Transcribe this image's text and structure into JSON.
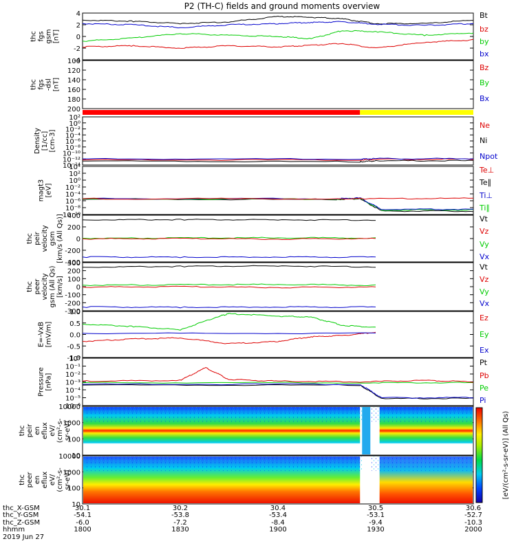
{
  "title": "P2 (TH-C) fields and ground moments overview",
  "footer": {
    "row_labels": [
      "thc_X-GSM",
      "thc_Y-GSM",
      "thc_Z-GSM",
      "hhmm",
      "2019 Jun 27"
    ],
    "ticks": [
      {
        "x": "30.1",
        "y": "-54.1",
        "z": "-6.0",
        "hhmm": "1800"
      },
      {
        "x": "30.2",
        "y": "-53.8",
        "z": "-7.2",
        "hhmm": "1830"
      },
      {
        "x": "30.4",
        "y": "-53.4",
        "z": "-8.4",
        "hhmm": "1900"
      },
      {
        "x": "30.5",
        "y": "-53.1",
        "z": "-9.4",
        "hhmm": "1930"
      },
      {
        "x": "30.6",
        "y": "-52.7",
        "z": "-10.3",
        "hhmm": "2000"
      }
    ]
  },
  "colors": {
    "black": "#000000",
    "red": "#dd0000",
    "green": "#00cc00",
    "blue": "#0000cc",
    "bar_red": "#ff0000",
    "bar_yellow": "#ffff00"
  },
  "chart_data": [
    {
      "type": "line",
      "ylabel_lines": [
        "thc",
        "fgs",
        "gsm",
        "[nT]"
      ],
      "yticks": [
        "4",
        "2",
        "0",
        "-2",
        "-4"
      ],
      "ylim": [
        -4,
        4
      ],
      "legend": [
        {
          "label": "Bt",
          "color": "#000000"
        },
        {
          "label": "bz",
          "color": "#dd0000"
        },
        {
          "label": "by",
          "color": "#00cc00"
        },
        {
          "label": "bx",
          "color": "#0000cc"
        }
      ],
      "series": [
        {
          "color": "#000000",
          "x": [
            18.0,
            18.25,
            18.5,
            18.75,
            19.0,
            19.17,
            19.33,
            19.5,
            19.75,
            20.0
          ],
          "y": [
            2.8,
            2.6,
            2.2,
            2.5,
            3.4,
            3.3,
            3.0,
            2.2,
            2.2,
            2.8
          ]
        },
        {
          "color": "#0000cc",
          "x": [
            18.0,
            18.25,
            18.5,
            18.75,
            19.0,
            19.17,
            19.33,
            19.5,
            19.75,
            20.0
          ],
          "y": [
            2.2,
            2.0,
            1.5,
            2.0,
            2.2,
            2.4,
            2.5,
            2.1,
            1.9,
            2.2
          ]
        },
        {
          "color": "#00cc00",
          "x": [
            18.0,
            18.25,
            18.5,
            18.75,
            19.0,
            19.17,
            19.33,
            19.5,
            19.75,
            20.0
          ],
          "y": [
            -0.8,
            -0.3,
            0.5,
            0.2,
            0.0,
            -0.4,
            1.0,
            0.8,
            0.2,
            0.6
          ]
        },
        {
          "color": "#dd0000",
          "x": [
            18.0,
            18.25,
            18.5,
            18.75,
            19.0,
            19.17,
            19.33,
            19.5,
            19.75,
            20.0
          ],
          "y": [
            -1.8,
            -1.6,
            -2.0,
            -1.6,
            -1.8,
            -1.5,
            -1.2,
            -2.0,
            -1.0,
            -0.6
          ]
        }
      ]
    },
    {
      "type": "line",
      "ylabel_lines": [
        "thc",
        "fgs",
        "-dsl",
        "[nT]"
      ],
      "yticks": [
        "100",
        "120",
        "140",
        "160",
        "180",
        "200"
      ],
      "ylim": [
        100,
        200
      ],
      "legend": [
        {
          "label": "Bz",
          "color": "#dd0000"
        },
        {
          "label": "By",
          "color": "#00cc00"
        },
        {
          "label": "Bx",
          "color": "#0000cc"
        }
      ],
      "series": []
    },
    {
      "type": "bar",
      "segments": [
        {
          "from": 18.0,
          "to": 19.42,
          "color": "#ff0000"
        },
        {
          "from": 19.42,
          "to": 20.0,
          "color": "#ffff00"
        }
      ]
    },
    {
      "type": "line",
      "ylabel_lines": [
        "Density",
        "[1/cc]",
        "[cm-3]"
      ],
      "yticks": [
        "10²",
        "10⁰",
        "10⁻²",
        "10⁻⁴",
        "10⁻⁶",
        "10⁻⁸",
        "10⁻¹⁰",
        "10⁻¹²",
        "10⁻¹⁴"
      ],
      "ylim": [
        2,
        -14
      ],
      "legend": [
        {
          "label": "Ne",
          "color": "#dd0000"
        },
        {
          "label": "Ni",
          "color": "#000000"
        },
        {
          "label": "Npot",
          "color": "#0000cc"
        }
      ],
      "series": [
        {
          "color": "#000000",
          "x": [
            18.0,
            19.42,
            19.5,
            20.0
          ],
          "y": [
            0.7,
            0.9,
            0.6,
            0.6
          ]
        },
        {
          "color": "#dd0000",
          "x": [
            18.0,
            19.42,
            19.5,
            20.0
          ],
          "y": [
            0.3,
            0.3,
            0.1,
            0.1
          ]
        },
        {
          "color": "#0000cc",
          "x": [
            18.0,
            19.42,
            19.5,
            20.0
          ],
          "y": [
            0.0,
            0.0,
            -0.1,
            -0.1
          ]
        }
      ]
    },
    {
      "type": "line",
      "ylabel_lines": [
        "magt3",
        "[eV]"
      ],
      "yticks": [
        "10⁴",
        "10²",
        "10⁰",
        "10⁻²",
        "10⁻⁴",
        "10⁻⁶",
        "10⁻⁸",
        "10⁻¹⁰"
      ],
      "ylim": [
        4,
        -10
      ],
      "legend": [
        {
          "label": "Te⊥",
          "color": "#dd0000"
        },
        {
          "label": "Te∥",
          "color": "#000000"
        },
        {
          "label": "Ti⊥",
          "color": "#0000cc"
        },
        {
          "label": "Ti∥",
          "color": "#00cc00"
        }
      ],
      "series": [
        {
          "color": "#000000",
          "x": [
            18.0,
            19.3,
            19.42,
            19.53,
            20.0
          ],
          "y": [
            -0.4,
            -0.4,
            -0.6,
            3.0,
            3.0
          ]
        },
        {
          "color": "#00cc00",
          "x": [
            18.0,
            19.3,
            19.42,
            19.53,
            20.0
          ],
          "y": [
            -0.5,
            -0.5,
            -0.7,
            2.7,
            2.7
          ]
        },
        {
          "color": "#0000cc",
          "x": [
            18.0,
            19.3,
            19.42,
            19.53,
            20.0
          ],
          "y": [
            -0.6,
            -0.6,
            -0.8,
            2.5,
            2.5
          ]
        },
        {
          "color": "#dd0000",
          "x": [
            18.0,
            19.42,
            20.0
          ],
          "y": [
            -0.6,
            -0.6,
            -0.7
          ]
        }
      ]
    },
    {
      "type": "line",
      "ylabel_lines": [
        "thc",
        "peir",
        "velocity",
        "gsm",
        "[km/s (All Qs)]"
      ],
      "yticks": [
        "400",
        "200",
        "0",
        "-200",
        "-400"
      ],
      "ylim": [
        -450,
        450
      ],
      "legend": [
        {
          "label": "Vt",
          "color": "#000000"
        },
        {
          "label": "Vz",
          "color": "#dd0000"
        },
        {
          "label": "Vy",
          "color": "#00cc00"
        },
        {
          "label": "Vx",
          "color": "#0000cc"
        }
      ],
      "series": [
        {
          "color": "#000000",
          "x": [
            18.0,
            18.5,
            19.0,
            19.5
          ],
          "y": [
            360,
            365,
            360,
            358
          ]
        },
        {
          "color": "#00cc00",
          "x": [
            18.0,
            18.5,
            19.0,
            19.5
          ],
          "y": [
            5,
            10,
            15,
            10
          ]
        },
        {
          "color": "#dd0000",
          "x": [
            18.0,
            18.5,
            19.0,
            19.5
          ],
          "y": [
            -5,
            0,
            -10,
            0
          ]
        },
        {
          "color": "#0000cc",
          "x": [
            18.0,
            18.5,
            19.0,
            19.5
          ],
          "y": [
            -355,
            -360,
            -355,
            -358
          ]
        }
      ]
    },
    {
      "type": "line",
      "ylabel_lines": [
        "thc",
        "peer",
        "velocity",
        "gsm (All Qs)",
        "[km/s]"
      ],
      "yticks": [
        "300",
        "200",
        "100",
        "0",
        "-100",
        "-200",
        "-300"
      ],
      "ylim": [
        -320,
        320
      ],
      "legend": [
        {
          "label": "Vt",
          "color": "#000000"
        },
        {
          "label": "Vz",
          "color": "#dd0000"
        },
        {
          "label": "Vy",
          "color": "#00cc00"
        },
        {
          "label": "Vx",
          "color": "#0000cc"
        }
      ],
      "series": [
        {
          "color": "#000000",
          "x": [
            18.0,
            18.5,
            19.0,
            19.5
          ],
          "y": [
            260,
            270,
            275,
            265
          ]
        },
        {
          "color": "#00cc00",
          "x": [
            18.0,
            18.5,
            19.0,
            19.5
          ],
          "y": [
            20,
            25,
            30,
            20
          ]
        },
        {
          "color": "#dd0000",
          "x": [
            18.0,
            18.5,
            19.0,
            19.5
          ],
          "y": [
            -5,
            0,
            -10,
            -5
          ]
        },
        {
          "color": "#0000cc",
          "x": [
            18.0,
            18.5,
            19.0,
            19.5
          ],
          "y": [
            -270,
            -275,
            -270,
            -272
          ]
        }
      ]
    },
    {
      "type": "line",
      "ylabel_lines": [
        "E=-VxB",
        "[mV/m]"
      ],
      "yticks": [
        "1.0",
        "0.5",
        "0.0",
        "-0.5",
        "-1.0"
      ],
      "ylim": [
        -1.0,
        1.0
      ],
      "legend": [
        {
          "label": "Ez",
          "color": "#dd0000"
        },
        {
          "label": "Ey",
          "color": "#00cc00"
        },
        {
          "label": "Ex",
          "color": "#0000cc"
        }
      ],
      "series": [
        {
          "color": "#00cc00",
          "x": [
            18.0,
            18.25,
            18.5,
            18.7,
            18.75,
            19.0,
            19.17,
            19.33,
            19.5
          ],
          "y": [
            0.45,
            0.35,
            0.2,
            0.8,
            0.9,
            0.8,
            0.75,
            0.4,
            0.3
          ]
        },
        {
          "color": "#dd0000",
          "x": [
            18.0,
            18.25,
            18.5,
            18.75,
            19.0,
            19.17,
            19.33,
            19.5
          ],
          "y": [
            -0.3,
            -0.2,
            -0.15,
            -0.4,
            -0.3,
            -0.1,
            -0.05,
            0.1
          ]
        },
        {
          "color": "#0000cc",
          "x": [
            18.0,
            19.5
          ],
          "y": [
            0.05,
            0.05
          ]
        }
      ]
    },
    {
      "type": "line",
      "ylabel_lines": [
        "Pressure",
        "[nPa]"
      ],
      "yticks": [
        "10⁰",
        "10⁻¹",
        "10⁻²",
        "10⁻³",
        "10⁻⁴",
        "10⁻⁵",
        "10⁻⁶"
      ],
      "ylim": [
        0,
        -6
      ],
      "legend": [
        {
          "label": "Pt",
          "color": "#000000"
        },
        {
          "label": "Pb",
          "color": "#dd0000"
        },
        {
          "label": "Pe",
          "color": "#00cc00"
        },
        {
          "label": "Pi",
          "color": "#0000cc"
        }
      ],
      "series": [
        {
          "color": "#000000",
          "x": [
            18.0,
            19.42,
            19.53,
            20.0
          ],
          "y": [
            -2.6,
            -2.6,
            -0.9,
            -0.9
          ]
        },
        {
          "color": "#0000cc",
          "x": [
            18.0,
            19.42,
            19.53,
            20.0
          ],
          "y": [
            -2.7,
            -2.7,
            -1.0,
            -1.0
          ]
        },
        {
          "color": "#00cc00",
          "x": [
            18.0,
            19.42,
            20.0
          ],
          "y": [
            -2.9,
            -2.9,
            -2.9
          ]
        },
        {
          "color": "#dd0000",
          "x": [
            18.0,
            18.5,
            18.63,
            18.75,
            19.0,
            19.42,
            19.75,
            20.0
          ],
          "y": [
            -3.1,
            -3.2,
            -4.8,
            -3.3,
            -3.1,
            -3.0,
            -3.2,
            -3.0
          ]
        }
      ]
    },
    {
      "type": "heatmap",
      "ylabel_lines": [
        "thc",
        "peir",
        "en",
        "eflux",
        "eV/",
        "(cm²-s-",
        "sr-eV)"
      ],
      "yticks": [
        "10000",
        "1000",
        "100",
        "10"
      ],
      "ylim": [
        5,
        20000
      ],
      "colorbar_label": "[eV/(cm²-s-sr-eV)] (All Qs)"
    },
    {
      "type": "heatmap",
      "ylabel_lines": [
        "thc",
        "peer",
        "en",
        "eflux",
        "eV/",
        "(cm²-s-",
        "sr-eV)"
      ],
      "yticks": [
        "10000",
        "1000",
        "100",
        "10"
      ],
      "ylim": [
        5,
        20000
      ],
      "colorbar_label": "[eV/(cm²-s-sr-eV)] (All Qs)"
    }
  ]
}
